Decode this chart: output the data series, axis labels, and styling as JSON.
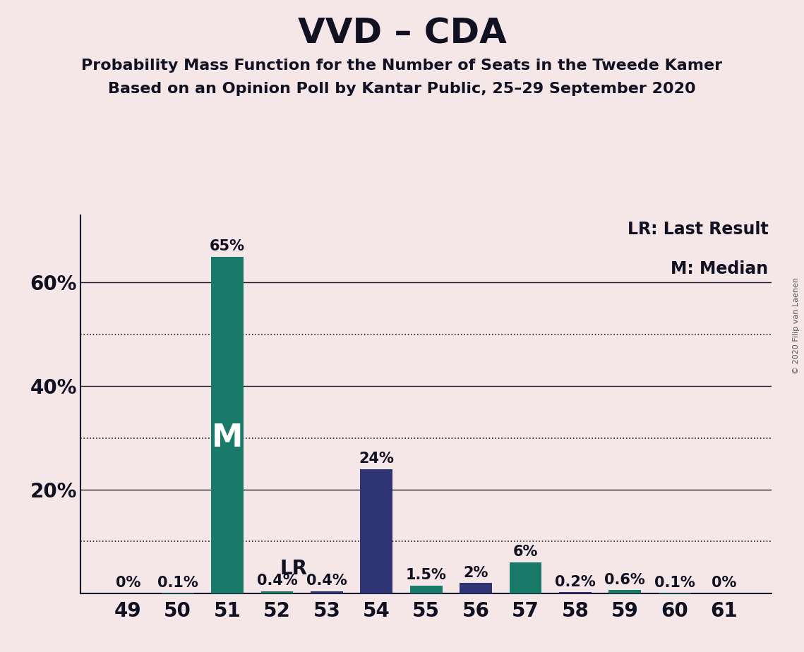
{
  "title": "VVD – CDA",
  "subtitle1": "Probability Mass Function for the Number of Seats in the Tweede Kamer",
  "subtitle2": "Based on an Opinion Poll by Kantar Public, 25–29 September 2020",
  "copyright": "© 2020 Filip van Laenen",
  "seats": [
    49,
    50,
    51,
    52,
    53,
    54,
    55,
    56,
    57,
    58,
    59,
    60,
    61
  ],
  "values": [
    0.0,
    0.1,
    65.0,
    0.4,
    0.4,
    24.0,
    1.5,
    2.0,
    6.0,
    0.2,
    0.6,
    0.1,
    0.0
  ],
  "bar_labels": [
    "0%",
    "0.1%",
    "65%",
    "0.4%",
    "0.4%",
    "24%",
    "1.5%",
    "2%",
    "6%",
    "0.2%",
    "0.6%",
    "0.1%",
    "0%"
  ],
  "bar_colors": [
    "#1a7a6a",
    "#1a7a6a",
    "#1a7a6a",
    "#1a7a6a",
    "#2e3474",
    "#2e3474",
    "#1a7a6a",
    "#2e3474",
    "#1a7a6a",
    "#2e3474",
    "#1a7a6a",
    "#1a7a6a",
    "#1a7a6a"
  ],
  "median_seat": 51,
  "lr_seat": 52,
  "background_color": "#f5e6e8",
  "ylim": [
    0,
    73
  ],
  "legend_lr": "LR: Last Result",
  "legend_m": "M: Median",
  "solid_gridlines": [
    20,
    40,
    60
  ],
  "dotted_gridlines": [
    10,
    30,
    50
  ],
  "ytick_positions": [
    20,
    40,
    60
  ],
  "ytick_labels": [
    "20%",
    "40%",
    "60%"
  ],
  "gridline_color": "#1a1a2e",
  "spine_color": "#1a1a2e",
  "title_fontsize": 36,
  "subtitle_fontsize": 16,
  "axis_fontsize": 20,
  "bar_label_fontsize": 15,
  "legend_fontsize": 17,
  "m_label_fontsize": 32,
  "lr_label_fontsize": 20
}
